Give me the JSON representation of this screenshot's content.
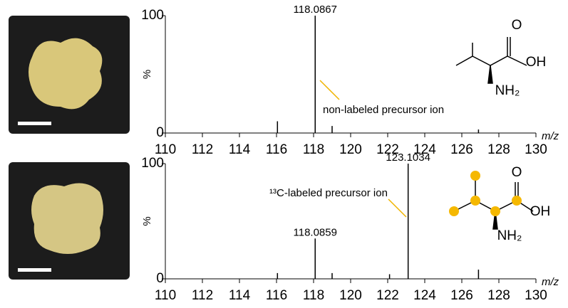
{
  "chart_data": [
    {
      "type": "stem",
      "x": [
        116.05,
        118.0867,
        119.0,
        126.9
      ],
      "values": [
        10,
        100,
        6,
        3
      ],
      "peak_labels": [
        null,
        "118.0867",
        null,
        null
      ],
      "color": "#000000",
      "xlim": [
        110,
        130
      ],
      "ylim": [
        0,
        100
      ],
      "xticks": [
        110,
        112,
        114,
        116,
        118,
        120,
        122,
        124,
        126,
        128,
        130
      ],
      "yticks": [
        0,
        100
      ],
      "ylabel": "%",
      "xlabel": "m/z",
      "annotation": "non-labeled precursor ion",
      "annotation_color": "#f0b400",
      "structure": {
        "o": "O",
        "oh": "OH",
        "nh2": "NH₂"
      }
    },
    {
      "type": "stem",
      "x": [
        116.05,
        118.0859,
        119.0,
        122.1,
        123.1034,
        126.9
      ],
      "values": [
        5,
        35,
        5,
        4,
        100,
        8
      ],
      "peak_labels": [
        null,
        "118.0859",
        null,
        null,
        "123.1034",
        null
      ],
      "color": "#000000",
      "xlim": [
        110,
        130
      ],
      "ylim": [
        0,
        100
      ],
      "xticks": [
        110,
        112,
        114,
        116,
        118,
        120,
        122,
        124,
        126,
        128,
        130
      ],
      "yticks": [
        0,
        100
      ],
      "ylabel": "%",
      "xlabel": "m/z",
      "annotation": "¹³C-labeled precursor ion",
      "annotation_color": "#f0b400",
      "structure": {
        "o": "O",
        "oh": "OH",
        "nh2": "NH₂"
      }
    }
  ]
}
